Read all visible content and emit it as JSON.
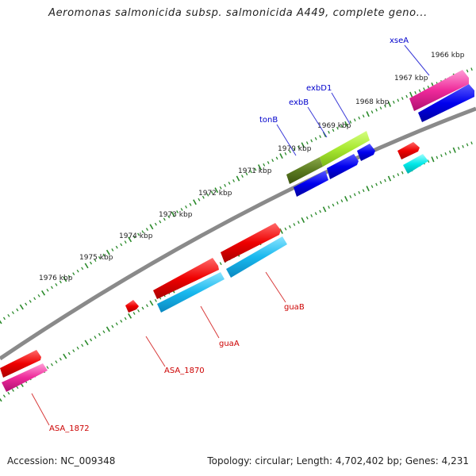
{
  "title": "Aeromonas salmonicida subsp. salmonicida A449, complete geno...",
  "footer": {
    "accession": "Accession: NC_009348",
    "topology": "Topology: circular; Length: 4,702,402 bp; Genes: 4,231"
  },
  "tick_labels": [
    "1966 kbp",
    "1967 kbp",
    "1968 kbp",
    "1969 kbp",
    "1970 kbp",
    "1971 kbp",
    "1972 kbp",
    "1973 kbp",
    "1974 kbp",
    "1975 kbp",
    "1976 kbp"
  ],
  "genes": {
    "xseA": "xseA",
    "exbD1": "exbD1",
    "exbB": "exbB",
    "tonB": "tonB",
    "guaB": "guaB",
    "guaA": "guaA",
    "ASA_1870": "ASA_1870",
    "ASA_1872": "ASA_1872"
  },
  "colors": {
    "forward_label": "#0000cc",
    "reverse_label": "#cc0000",
    "backbone": "#888888",
    "ticks": "#2a8a2a"
  }
}
